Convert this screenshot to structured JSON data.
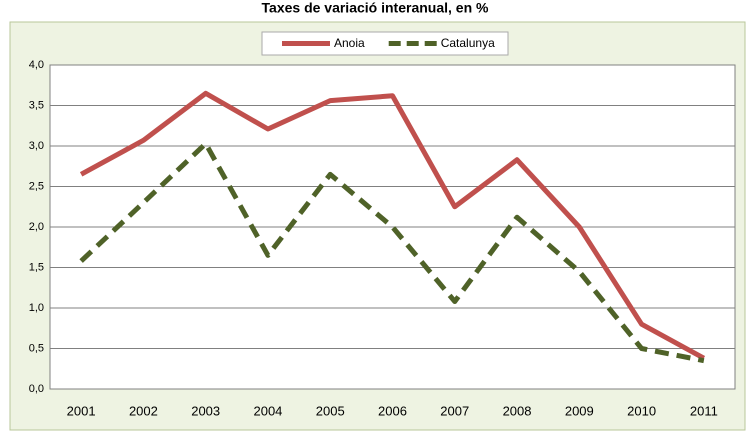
{
  "chart_data": {
    "type": "line",
    "title": "Taxes de variació interanual, en %",
    "categories": [
      "2001",
      "2002",
      "2003",
      "2004",
      "2005",
      "2006",
      "2007",
      "2008",
      "2009",
      "2010",
      "2011"
    ],
    "series": [
      {
        "name": "Anoia",
        "color": "#c0504d",
        "dash": false,
        "values": [
          2.65,
          3.07,
          3.65,
          3.21,
          3.56,
          3.62,
          2.25,
          2.83,
          2.0,
          0.8,
          0.38
        ]
      },
      {
        "name": "Catalunya",
        "color": "#4f6228",
        "dash": true,
        "values": [
          1.58,
          2.3,
          3.03,
          1.65,
          2.65,
          2.0,
          1.08,
          2.12,
          1.45,
          0.5,
          0.35
        ]
      }
    ],
    "ylim": [
      0,
      4
    ],
    "yticks": [
      {
        "value": 0,
        "label": "0,0"
      },
      {
        "value": 0.5,
        "label": "0,5"
      },
      {
        "value": 1,
        "label": "1,0"
      },
      {
        "value": 1.5,
        "label": "1,5"
      },
      {
        "value": 2,
        "label": "2,0"
      },
      {
        "value": 2.5,
        "label": "2,5"
      },
      {
        "value": 3,
        "label": "3,0"
      },
      {
        "value": 3.5,
        "label": "3,5"
      },
      {
        "value": 4,
        "label": "4,0"
      }
    ],
    "grid": true,
    "legend": "top"
  }
}
